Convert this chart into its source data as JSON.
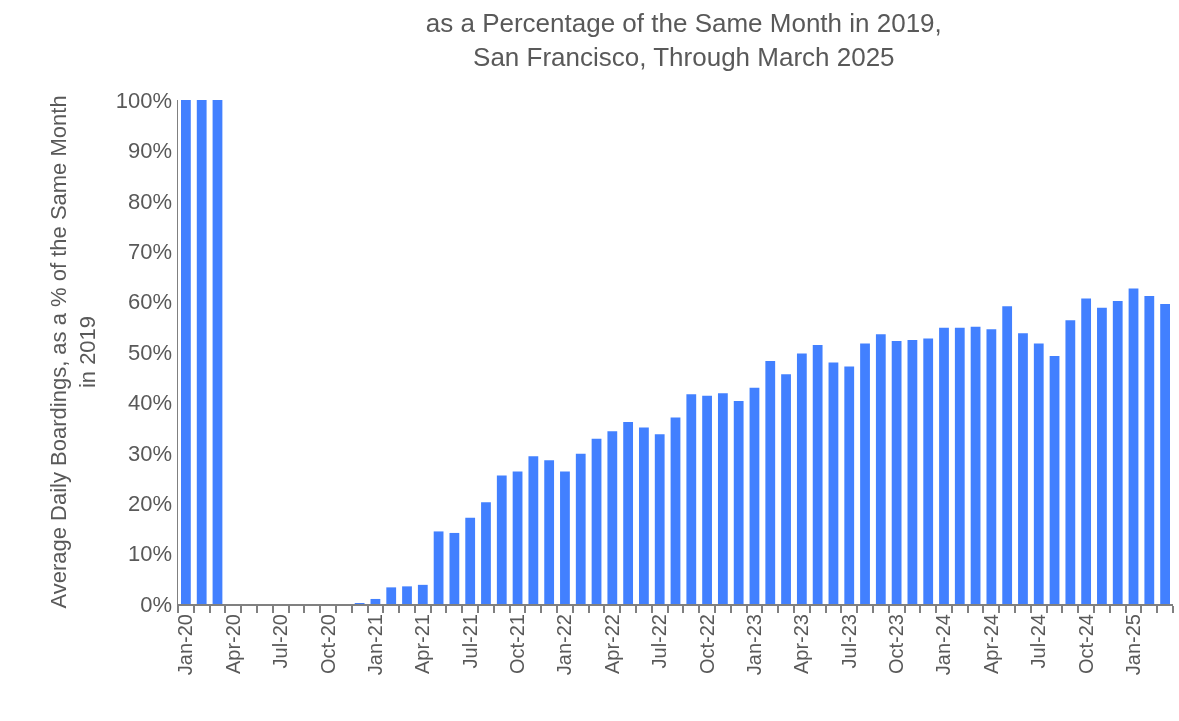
{
  "chart_data": {
    "type": "bar",
    "title": "as a Percentage of the Same Month in 2019,\nSan Francisco, Through March 2025",
    "ylabel": "Average Daily Boardings, as a % of the Same Month in 2019",
    "categories": [
      "Jan-20",
      null,
      null,
      "Apr-20",
      null,
      null,
      "Jul-20",
      null,
      null,
      "Oct-20",
      null,
      null,
      "Jan-21",
      null,
      null,
      "Apr-21",
      null,
      null,
      "Jul-21",
      null,
      null,
      "Oct-21",
      null,
      null,
      "Jan-22",
      null,
      null,
      "Apr-22",
      null,
      null,
      "Jul-22",
      null,
      null,
      "Oct-22",
      null,
      null,
      "Jan-23",
      null,
      null,
      "Apr-23",
      null,
      null,
      "Jul-23",
      null,
      null,
      "Oct-23",
      null,
      null,
      "Jan-24",
      null,
      null,
      "Apr-24",
      null,
      null,
      "Jul-24",
      null,
      null,
      "Oct-24",
      null,
      null,
      "Jan-25",
      null,
      null
    ],
    "values": [
      100,
      100,
      100,
      0,
      0,
      0,
      0,
      0,
      0,
      0,
      0,
      0.2,
      1.0,
      3.3,
      3.5,
      3.8,
      14.4,
      14.1,
      17.1,
      20.2,
      25.5,
      26.3,
      29.3,
      28.5,
      26.3,
      29.8,
      32.8,
      34.3,
      36.1,
      35.0,
      33.7,
      37.0,
      41.6,
      41.3,
      41.8,
      40.3,
      42.9,
      48.2,
      45.6,
      49.7,
      51.4,
      47.9,
      47.1,
      51.7,
      53.5,
      52.2,
      52.4,
      52.7,
      54.8,
      54.8,
      55.0,
      54.5,
      59.1,
      53.7,
      51.7,
      49.2,
      56.3,
      60.6,
      58.8,
      60.1,
      62.6,
      61.1,
      59.5
    ],
    "color": "#4280ff",
    "ylim": [
      0,
      100
    ],
    "yticks": [
      {
        "value": 0,
        "label": "0%"
      },
      {
        "value": 10,
        "label": "10%"
      },
      {
        "value": 20,
        "label": "20%"
      },
      {
        "value": 30,
        "label": "30%"
      },
      {
        "value": 40,
        "label": "40%"
      },
      {
        "value": 50,
        "label": "50%"
      },
      {
        "value": 60,
        "label": "60%"
      },
      {
        "value": 70,
        "label": "70%"
      },
      {
        "value": 80,
        "label": "80%"
      },
      {
        "value": 90,
        "label": "90%"
      },
      {
        "value": 100,
        "label": "100%"
      }
    ],
    "grid": false
  }
}
